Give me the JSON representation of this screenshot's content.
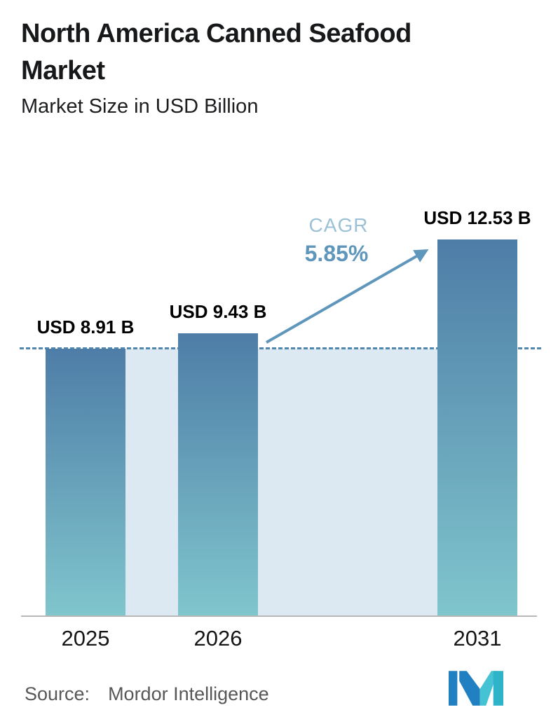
{
  "header": {
    "title": "North America Canned Seafood Market",
    "subtitle": "Market Size in USD Billion"
  },
  "chart_data": {
    "type": "bar",
    "categories": [
      "2025",
      "2026",
      "2031"
    ],
    "values": [
      8.91,
      9.43,
      12.53
    ],
    "bar_labels": [
      "USD 8.91 B",
      "USD 9.43 B",
      "USD 12.53 B"
    ],
    "unit": "USD Billion",
    "title": "North America Canned Seafood Market",
    "subtitle": "Market Size in USD Billion",
    "xlabel": "",
    "ylabel": "",
    "ylim": [
      0,
      14
    ],
    "grid": "off",
    "legend": "none",
    "baseline_value": 8.91,
    "baseline_style": "dashed",
    "annotations": {
      "cagr_label": "CAGR",
      "cagr_value": "5.85%",
      "arrow": "from 2026 bar to 2031 bar"
    },
    "colors": {
      "bar_top": "#4e7da7",
      "bar_bottom": "#80c6cd",
      "band": "#dce8f2",
      "dashed_line": "#4f87ae",
      "arrow": "#5e96bc",
      "cagr_label": "#9cc0d6",
      "cagr_value": "#5e96bc"
    }
  },
  "footer": {
    "source_label": "Source:",
    "source_value": "Mordor Intelligence",
    "logo": "mordor-intelligence-logo"
  }
}
